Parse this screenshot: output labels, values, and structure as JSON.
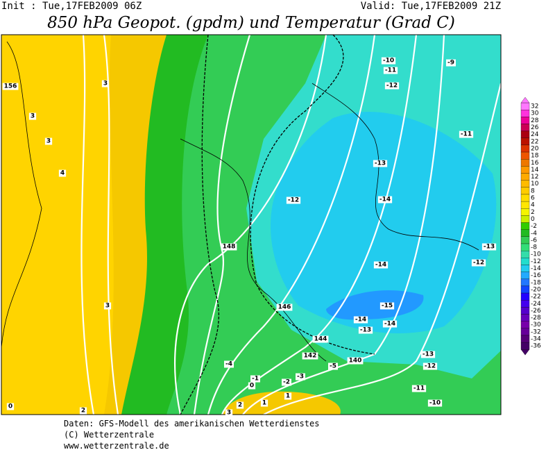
{
  "header": {
    "init": "Init : Tue,17FEB2009 06Z",
    "valid": "Valid: Tue,17FEB2009 21Z",
    "title": "850 hPa Geopot. (gpdm) und Temperatur (Grad C)"
  },
  "map_labels": [
    "156",
    "3",
    "3",
    "3",
    "4",
    "3",
    "2",
    "0",
    "-10",
    "-11",
    "-9",
    "-12",
    "-11",
    "-13",
    "-12",
    "-14",
    "148",
    "-13",
    "-12",
    "-14",
    "146",
    "-15",
    "-14",
    "-14",
    "-13",
    "144",
    "142",
    "-4",
    "-5",
    "140",
    "-13",
    "-12",
    "-3",
    "-2",
    "-1",
    "0",
    "-11",
    "1",
    "1",
    "2",
    "3",
    "-10"
  ],
  "colorbar": [
    32,
    30,
    28,
    26,
    24,
    22,
    20,
    18,
    16,
    14,
    12,
    10,
    8,
    6,
    4,
    2,
    0,
    -2,
    -4,
    -6,
    -8,
    -10,
    -12,
    -14,
    -16,
    -18,
    -20,
    -22,
    -24,
    -26,
    -28,
    -30,
    -32,
    -34,
    -36
  ],
  "footer": [
    "Daten: GFS-Modell des amerikanischen Wetterdienstes",
    "(C) Wetterzentrale",
    "www.wetterzentrale.de"
  ]
}
